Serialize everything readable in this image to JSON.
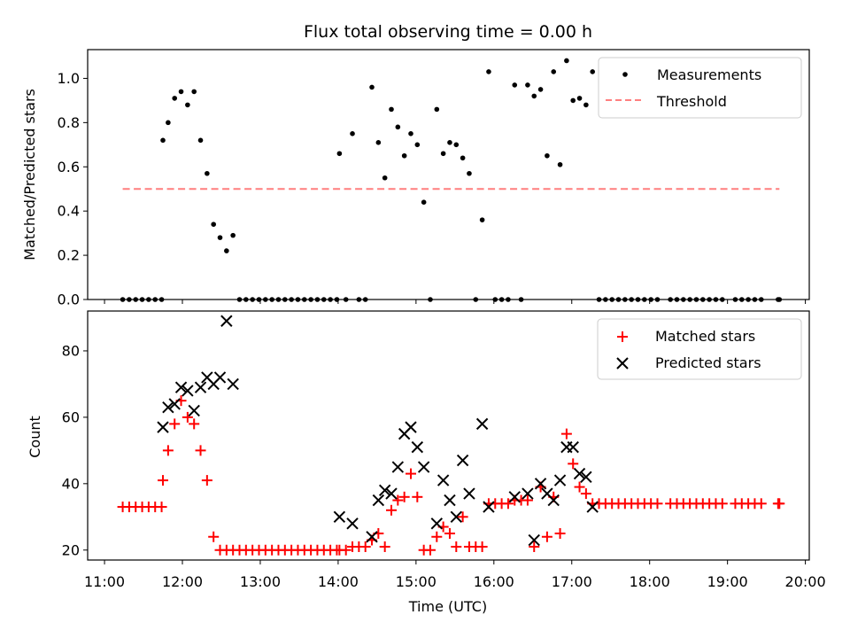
{
  "chart_data": [
    {
      "type": "scatter",
      "title": "Flux total observing time = 0.00 h",
      "xlabel": "",
      "ylabel": "Matched/Predicted stars",
      "xlim": [
        "11:00",
        "20:00"
      ],
      "ylim": [
        0,
        1.13
      ],
      "yticks": [
        "0.0",
        "0.2",
        "0.4",
        "0.6",
        "0.8",
        "1.0"
      ],
      "legend_position": "top-right",
      "grid": false,
      "series": [
        {
          "name": "Measurements",
          "marker": "dot",
          "color": "#000000",
          "points": [
            [
              "11:14",
              0
            ],
            [
              "11:19",
              0
            ],
            [
              "11:24",
              0
            ],
            [
              "11:29",
              0
            ],
            [
              "11:34",
              0
            ],
            [
              "11:39",
              0
            ],
            [
              "11:44",
              0
            ],
            [
              "11:45",
              0.72
            ],
            [
              "11:49",
              0.8
            ],
            [
              "11:54",
              0.91
            ],
            [
              "11:59",
              0.94
            ],
            [
              "12:04",
              0.88
            ],
            [
              "12:09",
              0.94
            ],
            [
              "12:14",
              0.72
            ],
            [
              "12:19",
              0.57
            ],
            [
              "12:24",
              0.34
            ],
            [
              "12:29",
              0.28
            ],
            [
              "12:34",
              0.22
            ],
            [
              "12:39",
              0.29
            ],
            [
              "12:44",
              0
            ],
            [
              "12:49",
              0
            ],
            [
              "12:54",
              0
            ],
            [
              "12:59",
              0
            ],
            [
              "13:04",
              0
            ],
            [
              "13:09",
              0
            ],
            [
              "13:14",
              0
            ],
            [
              "13:19",
              0
            ],
            [
              "13:24",
              0
            ],
            [
              "13:29",
              0
            ],
            [
              "13:34",
              0
            ],
            [
              "13:39",
              0
            ],
            [
              "13:44",
              0
            ],
            [
              "13:49",
              0
            ],
            [
              "13:54",
              0
            ],
            [
              "13:59",
              0
            ],
            [
              "14:01",
              0.66
            ],
            [
              "14:06",
              0
            ],
            [
              "14:11",
              0.75
            ],
            [
              "14:16",
              0
            ],
            [
              "14:21",
              0
            ],
            [
              "14:26",
              0.96
            ],
            [
              "14:31",
              0.71
            ],
            [
              "14:36",
              0.55
            ],
            [
              "14:41",
              0.86
            ],
            [
              "14:46",
              0.78
            ],
            [
              "14:51",
              0.65
            ],
            [
              "14:56",
              0.75
            ],
            [
              "15:01",
              0.7
            ],
            [
              "15:06",
              0.44
            ],
            [
              "15:11",
              0
            ],
            [
              "15:16",
              0.86
            ],
            [
              "15:21",
              0.66
            ],
            [
              "15:26",
              0.71
            ],
            [
              "15:31",
              0.7
            ],
            [
              "15:36",
              0.64
            ],
            [
              "15:41",
              0.57
            ],
            [
              "15:46",
              0
            ],
            [
              "15:51",
              0.36
            ],
            [
              "15:56",
              1.03
            ],
            [
              "16:01",
              0
            ],
            [
              "16:06",
              0
            ],
            [
              "16:11",
              0
            ],
            [
              "16:16",
              0.97
            ],
            [
              "16:21",
              0
            ],
            [
              "16:26",
              0.97
            ],
            [
              "16:31",
              0.92
            ],
            [
              "16:36",
              0.95
            ],
            [
              "16:41",
              0.65
            ],
            [
              "16:46",
              1.03
            ],
            [
              "16:51",
              0.61
            ],
            [
              "16:56",
              1.08
            ],
            [
              "17:01",
              0.9
            ],
            [
              "17:06",
              0.91
            ],
            [
              "17:11",
              0.88
            ],
            [
              "17:16",
              1.03
            ],
            [
              "17:21",
              0
            ],
            [
              "17:26",
              0
            ],
            [
              "17:31",
              0
            ],
            [
              "17:36",
              0
            ],
            [
              "17:41",
              0
            ],
            [
              "17:46",
              0
            ],
            [
              "17:51",
              0
            ],
            [
              "17:56",
              0
            ],
            [
              "18:01",
              0
            ],
            [
              "18:06",
              0
            ],
            [
              "18:16",
              0
            ],
            [
              "18:21",
              0
            ],
            [
              "18:26",
              0
            ],
            [
              "18:31",
              0
            ],
            [
              "18:36",
              0
            ],
            [
              "18:41",
              0
            ],
            [
              "18:46",
              0
            ],
            [
              "18:51",
              0
            ],
            [
              "18:56",
              0
            ],
            [
              "19:06",
              0
            ],
            [
              "19:11",
              0
            ],
            [
              "19:16",
              0
            ],
            [
              "19:21",
              0
            ],
            [
              "19:26",
              0
            ],
            [
              "19:39",
              0
            ],
            [
              "19:40",
              0
            ]
          ]
        },
        {
          "name": "Threshold",
          "marker": "dashed-line",
          "color": "#ff7f7f",
          "points": [
            [
              "11:14",
              0.5
            ],
            [
              "19:40",
              0.5
            ]
          ]
        }
      ]
    },
    {
      "type": "scatter",
      "title": "",
      "xlabel": "Time (UTC)",
      "ylabel": "Count",
      "xlim": [
        "11:00",
        "20:00"
      ],
      "ylim": [
        17,
        92
      ],
      "yticks": [
        "20",
        "40",
        "60",
        "80"
      ],
      "xticks": [
        "11:00",
        "12:00",
        "13:00",
        "14:00",
        "15:00",
        "16:00",
        "17:00",
        "18:00",
        "19:00",
        "20:00"
      ],
      "legend_position": "top-right",
      "grid": false,
      "series": [
        {
          "name": "Matched stars",
          "marker": "plus",
          "color": "#ff0000",
          "points": [
            [
              "11:14",
              33
            ],
            [
              "11:19",
              33
            ],
            [
              "11:24",
              33
            ],
            [
              "11:29",
              33
            ],
            [
              "11:34",
              33
            ],
            [
              "11:39",
              33
            ],
            [
              "11:44",
              33
            ],
            [
              "11:45",
              41
            ],
            [
              "11:49",
              50
            ],
            [
              "11:54",
              58
            ],
            [
              "11:59",
              65
            ],
            [
              "12:04",
              60
            ],
            [
              "12:09",
              58
            ],
            [
              "12:14",
              50
            ],
            [
              "12:19",
              41
            ],
            [
              "12:24",
              24
            ],
            [
              "12:29",
              20
            ],
            [
              "12:34",
              20
            ],
            [
              "12:39",
              20
            ],
            [
              "12:44",
              20
            ],
            [
              "12:49",
              20
            ],
            [
              "12:54",
              20
            ],
            [
              "12:59",
              20
            ],
            [
              "13:04",
              20
            ],
            [
              "13:09",
              20
            ],
            [
              "13:14",
              20
            ],
            [
              "13:19",
              20
            ],
            [
              "13:24",
              20
            ],
            [
              "13:29",
              20
            ],
            [
              "13:34",
              20
            ],
            [
              "13:39",
              20
            ],
            [
              "13:44",
              20
            ],
            [
              "13:49",
              20
            ],
            [
              "13:54",
              20
            ],
            [
              "13:59",
              20
            ],
            [
              "14:01",
              20
            ],
            [
              "14:06",
              20
            ],
            [
              "14:11",
              21
            ],
            [
              "14:16",
              21
            ],
            [
              "14:21",
              21
            ],
            [
              "14:26",
              23
            ],
            [
              "14:31",
              25
            ],
            [
              "14:36",
              21
            ],
            [
              "14:41",
              32
            ],
            [
              "14:46",
              35
            ],
            [
              "14:51",
              36
            ],
            [
              "14:56",
              43
            ],
            [
              "15:01",
              36
            ],
            [
              "15:06",
              20
            ],
            [
              "15:11",
              20
            ],
            [
              "15:16",
              24
            ],
            [
              "15:21",
              27
            ],
            [
              "15:26",
              25
            ],
            [
              "15:31",
              21
            ],
            [
              "15:36",
              30
            ],
            [
              "15:41",
              21
            ],
            [
              "15:46",
              21
            ],
            [
              "15:51",
              21
            ],
            [
              "15:56",
              34
            ],
            [
              "16:01",
              34
            ],
            [
              "16:06",
              34
            ],
            [
              "16:11",
              34
            ],
            [
              "16:16",
              35
            ],
            [
              "16:21",
              35
            ],
            [
              "16:26",
              35
            ],
            [
              "16:31",
              21
            ],
            [
              "16:36",
              39
            ],
            [
              "16:41",
              24
            ],
            [
              "16:46",
              36
            ],
            [
              "16:51",
              25
            ],
            [
              "16:56",
              55
            ],
            [
              "17:01",
              46
            ],
            [
              "17:06",
              39
            ],
            [
              "17:11",
              37
            ],
            [
              "17:16",
              34
            ],
            [
              "17:21",
              34
            ],
            [
              "17:26",
              34
            ],
            [
              "17:31",
              34
            ],
            [
              "17:36",
              34
            ],
            [
              "17:41",
              34
            ],
            [
              "17:46",
              34
            ],
            [
              "17:51",
              34
            ],
            [
              "17:56",
              34
            ],
            [
              "18:01",
              34
            ],
            [
              "18:06",
              34
            ],
            [
              "18:16",
              34
            ],
            [
              "18:21",
              34
            ],
            [
              "18:26",
              34
            ],
            [
              "18:31",
              34
            ],
            [
              "18:36",
              34
            ],
            [
              "18:41",
              34
            ],
            [
              "18:46",
              34
            ],
            [
              "18:51",
              34
            ],
            [
              "18:56",
              34
            ],
            [
              "19:06",
              34
            ],
            [
              "19:11",
              34
            ],
            [
              "19:16",
              34
            ],
            [
              "19:21",
              34
            ],
            [
              "19:26",
              34
            ],
            [
              "19:39",
              34
            ],
            [
              "19:40",
              34
            ]
          ]
        },
        {
          "name": "Predicted stars",
          "marker": "x",
          "color": "#000000",
          "points": [
            [
              "11:45",
              57
            ],
            [
              "11:49",
              63
            ],
            [
              "11:54",
              64
            ],
            [
              "11:59",
              69
            ],
            [
              "12:04",
              68
            ],
            [
              "12:09",
              62
            ],
            [
              "12:14",
              69
            ],
            [
              "12:19",
              72
            ],
            [
              "12:24",
              70
            ],
            [
              "12:29",
              72
            ],
            [
              "12:34",
              89
            ],
            [
              "12:39",
              70
            ],
            [
              "14:01",
              30
            ],
            [
              "14:11",
              28
            ],
            [
              "14:26",
              24
            ],
            [
              "14:31",
              35
            ],
            [
              "14:36",
              38
            ],
            [
              "14:41",
              37
            ],
            [
              "14:46",
              45
            ],
            [
              "14:51",
              55
            ],
            [
              "14:56",
              57
            ],
            [
              "15:01",
              51
            ],
            [
              "15:06",
              45
            ],
            [
              "15:16",
              28
            ],
            [
              "15:21",
              41
            ],
            [
              "15:26",
              35
            ],
            [
              "15:31",
              30
            ],
            [
              "15:36",
              47
            ],
            [
              "15:41",
              37
            ],
            [
              "15:51",
              58
            ],
            [
              "15:56",
              33
            ],
            [
              "16:16",
              36
            ],
            [
              "16:26",
              37
            ],
            [
              "16:31",
              23
            ],
            [
              "16:36",
              40
            ],
            [
              "16:41",
              37
            ],
            [
              "16:46",
              35
            ],
            [
              "16:51",
              41
            ],
            [
              "16:56",
              51
            ],
            [
              "17:01",
              51
            ],
            [
              "17:06",
              43
            ],
            [
              "17:11",
              42
            ],
            [
              "17:16",
              33
            ]
          ]
        }
      ]
    }
  ]
}
